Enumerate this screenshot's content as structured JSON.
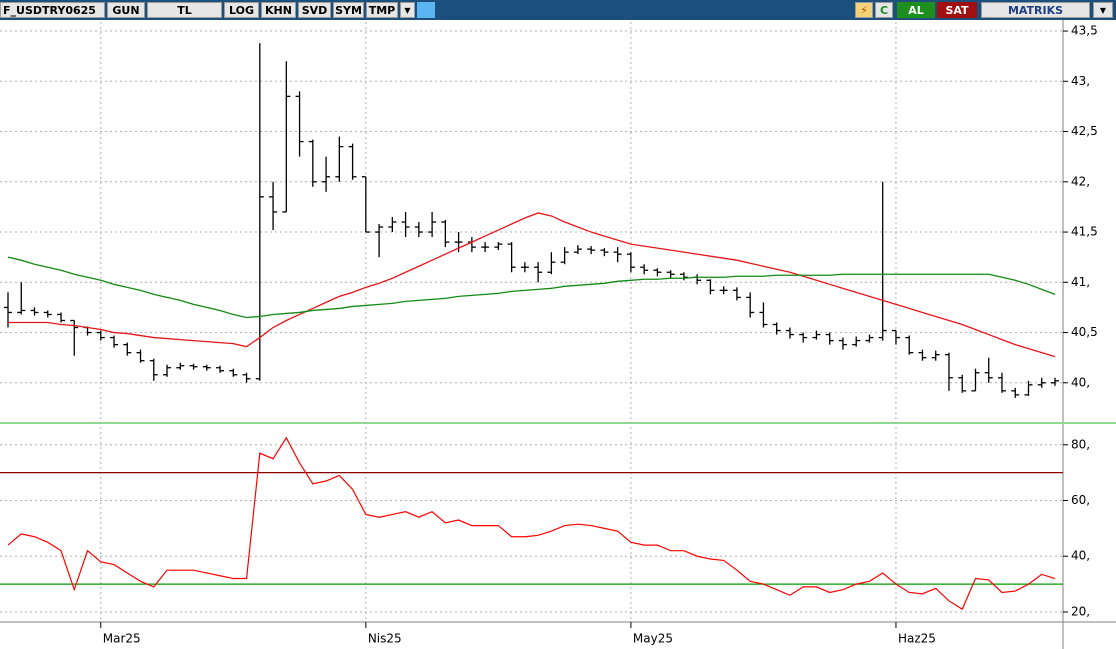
{
  "toolbar": {
    "symbol": "F_USDTRY0625",
    "buttons": [
      "GUN",
      "TL",
      "LOG",
      "KHN",
      "SVD",
      "SYM",
      "TMP"
    ],
    "refresh": "C",
    "buy": "AL",
    "sell": "SAT",
    "brand": "MATRIKS"
  },
  "chart_data": [
    {
      "type": "ohlc",
      "color": "#000000",
      "open": [
        40.75,
        40.7,
        40.72,
        40.7,
        40.68,
        40.62,
        40.55,
        40.5,
        40.45,
        40.38,
        40.3,
        40.22,
        40.08,
        40.15,
        40.17,
        40.16,
        40.15,
        40.12,
        40.08,
        40.04,
        41.85,
        41.7,
        42.85,
        42.4,
        42.0,
        42.05,
        42.35,
        42.05,
        41.5,
        41.55,
        41.6,
        41.55,
        41.5,
        41.6,
        41.4,
        41.4,
        41.35,
        41.35,
        41.38,
        41.15,
        41.15,
        41.1,
        41.2,
        41.3,
        41.33,
        41.32,
        41.3,
        41.28,
        41.15,
        41.12,
        41.1,
        41.08,
        41.05,
        41.02,
        40.92,
        40.92,
        40.85,
        40.7,
        40.58,
        40.52,
        40.48,
        40.45,
        40.48,
        40.42,
        40.38,
        40.42,
        40.45,
        40.52,
        40.45,
        40.3,
        40.25,
        40.28,
        40.05,
        39.92,
        40.1,
        40.05,
        39.92,
        39.88,
        39.98,
        40.0
      ],
      "high": [
        40.9,
        41.0,
        40.75,
        40.72,
        40.7,
        40.62,
        40.56,
        40.52,
        40.47,
        40.4,
        40.33,
        40.24,
        40.18,
        40.2,
        40.19,
        40.18,
        40.17,
        40.14,
        40.1,
        43.38,
        42.0,
        43.2,
        42.9,
        42.42,
        42.25,
        42.45,
        42.38,
        42.05,
        41.58,
        41.65,
        41.7,
        41.6,
        41.7,
        41.62,
        41.5,
        41.45,
        41.4,
        41.4,
        41.4,
        41.2,
        41.2,
        41.3,
        41.35,
        41.37,
        41.36,
        41.34,
        41.35,
        41.3,
        41.18,
        41.14,
        41.12,
        41.1,
        41.08,
        41.03,
        40.96,
        40.95,
        40.9,
        40.8,
        40.6,
        40.55,
        40.5,
        40.52,
        40.5,
        40.45,
        40.46,
        40.48,
        42.0,
        40.52,
        40.47,
        40.33,
        40.32,
        40.3,
        40.08,
        40.14,
        40.25,
        40.1,
        39.95,
        40.02,
        40.05,
        40.05
      ],
      "low": [
        40.55,
        40.68,
        40.67,
        40.65,
        40.6,
        40.27,
        40.47,
        40.42,
        40.35,
        40.27,
        40.2,
        40.02,
        40.06,
        40.13,
        40.13,
        40.12,
        40.1,
        40.06,
        40.0,
        40.02,
        41.52,
        41.7,
        42.25,
        41.95,
        41.9,
        42.0,
        42.02,
        41.5,
        41.25,
        41.5,
        41.45,
        41.45,
        41.45,
        41.35,
        41.3,
        41.3,
        41.3,
        41.32,
        41.1,
        41.1,
        41.0,
        41.08,
        41.18,
        41.28,
        41.28,
        41.26,
        41.2,
        41.1,
        41.08,
        41.06,
        41.04,
        41.02,
        40.98,
        40.88,
        40.88,
        40.82,
        40.65,
        40.55,
        40.48,
        40.44,
        40.4,
        40.43,
        40.38,
        40.33,
        40.36,
        40.4,
        40.42,
        40.38,
        40.28,
        40.22,
        40.22,
        39.92,
        39.9,
        39.92,
        40.0,
        39.9,
        39.85,
        39.87,
        39.95,
        39.97
      ],
      "close": [
        40.7,
        40.72,
        40.7,
        40.68,
        40.62,
        40.55,
        40.5,
        40.45,
        40.38,
        40.3,
        40.22,
        40.08,
        40.15,
        40.17,
        40.16,
        40.15,
        40.12,
        40.08,
        40.04,
        41.85,
        41.7,
        42.85,
        42.4,
        42.0,
        42.05,
        42.35,
        42.05,
        41.5,
        41.55,
        41.6,
        41.55,
        41.5,
        41.6,
        41.4,
        41.4,
        41.35,
        41.35,
        41.38,
        41.15,
        41.15,
        41.1,
        41.2,
        41.3,
        41.33,
        41.32,
        41.3,
        41.28,
        41.15,
        41.12,
        41.1,
        41.08,
        41.05,
        41.02,
        40.92,
        40.92,
        40.85,
        40.7,
        40.58,
        40.52,
        40.48,
        40.45,
        40.48,
        40.42,
        40.38,
        40.42,
        40.45,
        40.52,
        40.45,
        40.3,
        40.25,
        40.28,
        40.05,
        39.92,
        40.1,
        40.05,
        39.92,
        39.88,
        39.98,
        40.0,
        40.02
      ],
      "lines": [
        {
          "color": "#e8141a",
          "values": [
            40.6,
            40.6,
            40.6,
            40.6,
            40.58,
            40.57,
            40.55,
            40.53,
            40.5,
            40.49,
            40.47,
            40.45,
            40.44,
            40.43,
            40.42,
            40.41,
            40.4,
            40.39,
            40.36,
            40.45,
            40.55,
            40.62,
            40.68,
            40.74,
            40.8,
            40.86,
            40.9,
            40.95,
            40.99,
            41.04,
            41.1,
            41.16,
            41.22,
            41.28,
            41.34,
            41.4,
            41.46,
            41.52,
            41.58,
            41.64,
            41.69,
            41.66,
            41.6,
            41.55,
            41.5,
            41.46,
            41.42,
            41.38,
            41.36,
            41.34,
            41.32,
            41.3,
            41.28,
            41.26,
            41.24,
            41.22,
            41.19,
            41.16,
            41.13,
            41.1,
            41.06,
            41.02,
            40.98,
            40.94,
            40.9,
            40.86,
            40.82,
            40.78,
            40.74,
            40.7,
            40.66,
            40.62,
            40.58,
            40.53,
            40.48,
            40.43,
            40.38,
            40.34,
            40.3,
            40.26
          ]
        },
        {
          "color": "#138a13",
          "values": [
            41.25,
            41.22,
            41.18,
            41.15,
            41.12,
            41.08,
            41.05,
            41.02,
            40.98,
            40.95,
            40.92,
            40.88,
            40.85,
            40.82,
            40.78,
            40.75,
            40.72,
            40.68,
            40.65,
            40.66,
            40.68,
            40.69,
            40.7,
            40.72,
            40.73,
            40.74,
            40.76,
            40.77,
            40.78,
            40.79,
            40.81,
            40.82,
            40.83,
            40.84,
            40.86,
            40.87,
            40.88,
            40.89,
            40.91,
            40.92,
            40.93,
            40.94,
            40.96,
            40.97,
            40.98,
            40.99,
            41.01,
            41.02,
            41.03,
            41.03,
            41.04,
            41.04,
            41.05,
            41.05,
            41.05,
            41.06,
            41.06,
            41.06,
            41.07,
            41.07,
            41.07,
            41.07,
            41.07,
            41.08,
            41.08,
            41.08,
            41.08,
            41.08,
            41.08,
            41.08,
            41.08,
            41.08,
            41.08,
            41.08,
            41.08,
            41.05,
            41.02,
            40.98,
            40.93,
            40.88
          ]
        }
      ],
      "ylim": [
        39.61,
        43.59
      ],
      "yticks": [
        {
          "value": 43.5,
          "label": "43,5"
        },
        {
          "value": 43,
          "label": "43,"
        },
        {
          "value": 42.5,
          "label": "42,5"
        },
        {
          "value": 42,
          "label": "42,"
        },
        {
          "value": 41.5,
          "label": "41,5"
        },
        {
          "value": 41,
          "label": "41,"
        },
        {
          "value": 40.5,
          "label": "40,5"
        },
        {
          "value": 40,
          "label": "40,"
        }
      ],
      "grid": true
    },
    {
      "type": "line",
      "color": "#ff0000",
      "values": [
        44,
        48,
        47,
        45,
        42,
        28,
        42,
        38,
        37,
        34,
        31,
        29,
        35,
        35,
        35,
        34,
        33,
        32,
        32,
        77,
        75,
        82.5,
        73.5,
        66,
        67,
        69,
        64,
        55,
        54,
        55,
        56,
        54,
        56,
        52,
        53,
        51,
        51,
        51,
        47,
        47,
        47.5,
        49,
        51,
        51.5,
        51,
        50,
        49,
        45,
        44,
        44,
        42,
        42,
        40,
        39,
        38.5,
        35,
        31,
        30,
        28,
        26,
        29,
        29,
        27,
        28,
        30,
        31,
        34,
        30,
        27,
        26.5,
        28.5,
        24,
        21,
        32,
        31.5,
        27,
        27.5,
        30,
        33.5,
        32
      ],
      "categories": [
        null,
        null,
        null,
        null,
        null,
        null,
        null,
        "Mar25",
        null,
        null,
        null,
        null,
        null,
        null,
        null,
        null,
        null,
        null,
        null,
        null,
        null,
        null,
        null,
        null,
        null,
        null,
        null,
        "Nis25",
        null,
        null,
        null,
        null,
        null,
        null,
        null,
        null,
        null,
        null,
        null,
        null,
        null,
        null,
        null,
        null,
        null,
        null,
        null,
        "May25",
        null,
        null,
        null,
        null,
        null,
        null,
        null,
        null,
        null,
        null,
        null,
        null,
        null,
        null,
        null,
        null,
        null,
        null,
        null,
        "Haz25",
        null,
        null,
        null,
        null,
        null,
        null,
        null,
        null,
        null,
        null,
        null,
        null
      ],
      "ylim": [
        16.4,
        87.1
      ],
      "yticks": [
        {
          "value": 80,
          "label": "80,"
        },
        {
          "value": 60,
          "label": "60,"
        },
        {
          "value": 40,
          "label": "40,"
        },
        {
          "value": 20,
          "label": "20,"
        }
      ],
      "reference_lines": [
        {
          "value": 70,
          "color": "#8b0000"
        },
        {
          "value": 30,
          "color": "#009900"
        }
      ],
      "grid": true
    }
  ]
}
